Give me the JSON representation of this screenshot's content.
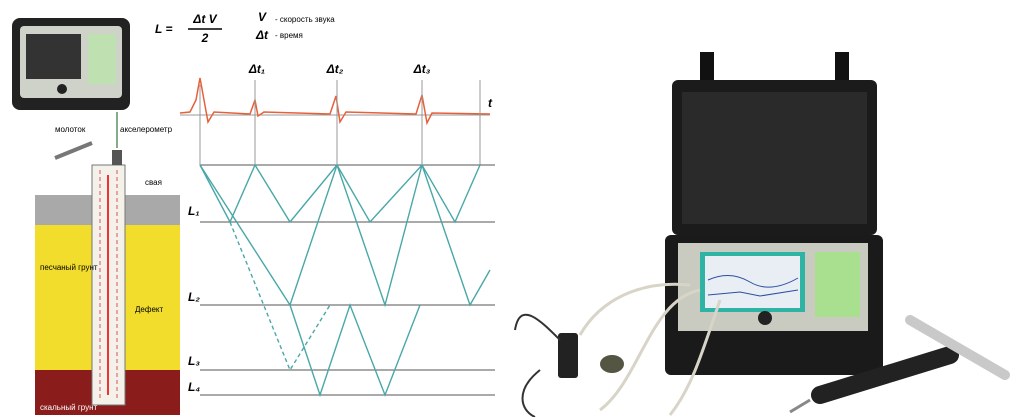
{
  "formula": {
    "lhs": "L =",
    "numerator": "Δt V",
    "denominator": "2"
  },
  "legend": [
    {
      "symbol": "V",
      "text": "- скорость звука"
    },
    {
      "symbol": "Δt",
      "text": "- время"
    }
  ],
  "time_marks": [
    "Δt₁",
    "Δt₂",
    "Δt₃"
  ],
  "time_axis": "t",
  "depth_marks": [
    "L₁",
    "L₂",
    "L₃",
    "L₄"
  ],
  "labels": {
    "hammer": "молоток",
    "sensor": "акселерометр",
    "pile": "свая",
    "soil": "песчаный грунт",
    "defect": "Дефект",
    "rock": "скальный грунт"
  }
}
